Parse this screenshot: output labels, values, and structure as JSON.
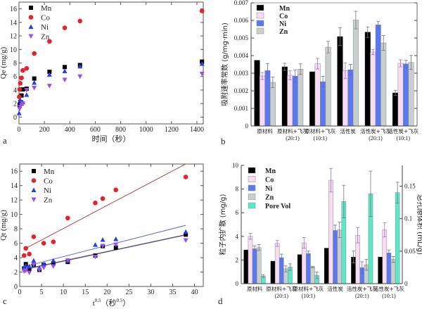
{
  "chart_data": [
    {
      "panel": "a",
      "type": "scatter",
      "xlabel": "时间（秒）",
      "ylabel": "Qe (mg/g)",
      "xlim": [
        0,
        1450
      ],
      "ylim": [
        -1,
        17
      ],
      "xticks": [
        0,
        200,
        400,
        600,
        800,
        1000,
        1200,
        1400
      ],
      "yticks": [
        0,
        2,
        4,
        6,
        8,
        10,
        12,
        14,
        16
      ],
      "legend": "top-left",
      "series": [
        {
          "name": "Mn",
          "color": "#000000",
          "marker": "square",
          "x": [
            5,
            10,
            20,
            30,
            60,
            120,
            240,
            360,
            480,
            1440
          ],
          "y": [
            1.8,
            2.2,
            3.2,
            4.1,
            4.2,
            5.7,
            6.7,
            7.4,
            7.7,
            8.2
          ]
        },
        {
          "name": "Co",
          "color": "#e8222c",
          "marker": "circle",
          "x": [
            2,
            5,
            10,
            20,
            30,
            60,
            120,
            240,
            360,
            480,
            1440
          ],
          "y": [
            3.0,
            4.1,
            5.0,
            5.8,
            6.9,
            7.2,
            9.4,
            11.2,
            13.2,
            14.2,
            15.7
          ]
        },
        {
          "name": "Ni",
          "color": "#2a3ee8",
          "marker": "triangle-up",
          "x": [
            1,
            10,
            20,
            30,
            60,
            120,
            240,
            360,
            480,
            1440
          ],
          "y": [
            0.6,
            2.5,
            2.0,
            2.2,
            3.3,
            5.1,
            6.3,
            6.8,
            7.5,
            7.9
          ]
        },
        {
          "name": "Zn",
          "color": "#9a50e8",
          "marker": "triangle-down",
          "x": [
            5,
            10,
            20,
            30,
            60,
            120,
            240,
            360,
            480,
            1440
          ],
          "y": [
            1.2,
            1.5,
            1.8,
            2.0,
            4.0,
            4.3,
            4.6,
            5.5,
            6.0,
            6.4
          ]
        }
      ]
    },
    {
      "panel": "b",
      "type": "bar",
      "ylabel": "吸附速率常数 (g/mg·min)",
      "ylim": [
        0,
        0.007
      ],
      "yticks": [
        "0",
        "0.001",
        "0.002",
        "0.003",
        "0.004",
        "0.005",
        "0.006",
        "0.007"
      ],
      "legend": "top-left",
      "categories": [
        [
          "原材料",
          ""
        ],
        [
          "原材料+飞灰",
          "(20:1)"
        ],
        [
          "原材料+飞灰",
          "(10:1)"
        ],
        [
          "活性炭",
          ""
        ],
        [
          "活性炭+飞灰",
          "(20:1)"
        ],
        [
          "活性炭+飞灰",
          "(10:1)"
        ]
      ],
      "series": [
        {
          "name": "Mn",
          "color": "#000000",
          "label_color": "#000000",
          "values": [
            0.00373,
            0.00336,
            0.00308,
            0.00508,
            0.00533,
            0.00188
          ],
          "errors": [
            0,
            0.0002,
            0,
            0.0005,
            0.0003,
            0.00015
          ]
        },
        {
          "name": "Co",
          "color": "#f7dcf2",
          "label_color": "#e0306a",
          "values": [
            0.00284,
            0.00288,
            0.00354,
            0.00314,
            0.0042,
            0.00356
          ],
          "errors": [
            0.0002,
            0.00025,
            0.0003,
            0.00045,
            0.00015,
            0.0002
          ]
        },
        {
          "name": "Ni",
          "color": "#5a78f0",
          "label_color": "#2a3ee8",
          "values": [
            0.00315,
            0.00284,
            0.00252,
            0.0032,
            0.00575,
            0.00353
          ],
          "errors": [
            0.0004,
            0.00035,
            0.0003,
            0.0003,
            0.0002,
            0.0002
          ]
        },
        {
          "name": "Zn",
          "color": "#c9cfcf",
          "label_color": "#b0b8c0",
          "values": [
            0.00248,
            0.00323,
            0.00448,
            0.00602,
            0.00472,
            0.00361
          ],
          "errors": [
            0.0003,
            0.0003,
            0.00033,
            0.0005,
            0.00042,
            0.0004
          ]
        }
      ]
    },
    {
      "panel": "c",
      "type": "scatter",
      "xlabel": "t",
      "xlabel_sup": "0.5",
      "xlabel_unit": "（秒",
      "xlabel_unit_sup": "0.5",
      "xlabel_end": "）",
      "ylabel": "Qt (mg/g)",
      "xlim": [
        0,
        42
      ],
      "ylim": [
        0,
        17
      ],
      "xticks": [
        0,
        5,
        10,
        15,
        20,
        25,
        30,
        35,
        40
      ],
      "yticks": [
        0,
        2,
        4,
        6,
        8,
        10,
        12,
        14,
        16
      ],
      "legend": "top-left",
      "series": [
        {
          "name": "Mn",
          "color": "#000000",
          "marker": "square",
          "x": [
            1,
            1.4,
            2.2,
            3.2,
            4.5,
            5.5,
            7.7,
            11,
            17.3,
            19,
            22,
            38
          ],
          "y": [
            2.5,
            3.1,
            2.4,
            3.0,
            2.3,
            3.0,
            3.2,
            3.4,
            4.3,
            5.6,
            5.4,
            7.2
          ],
          "fit": {
            "slope": 0.13,
            "intercept": 2.25,
            "color": "#3a2a5a"
          }
        },
        {
          "name": "Co",
          "color": "#e8222c",
          "marker": "circle",
          "x": [
            1,
            1.4,
            2.2,
            3.2,
            5.5,
            7.7,
            11,
            17.3,
            19,
            22,
            38
          ],
          "y": [
            4.3,
            5.3,
            4.5,
            6.9,
            6.0,
            6.2,
            9.5,
            11.6,
            12.2,
            13.4,
            15.2
          ],
          "fit": {
            "slope": 0.32,
            "intercept": 4.85,
            "color": "#a8484e"
          }
        },
        {
          "name": "Ni",
          "color": "#2a3ee8",
          "marker": "triangle-up",
          "x": [
            1,
            1.4,
            2.2,
            3.2,
            4.5,
            5.5,
            7.7,
            11,
            17.3,
            19,
            22,
            38
          ],
          "y": [
            2.6,
            2.9,
            2.8,
            3.6,
            2.6,
            3.1,
            3.6,
            3.6,
            5.8,
            6.5,
            6.6,
            7.6
          ],
          "fit": {
            "slope": 0.155,
            "intercept": 2.6,
            "color": "#5a6ae0"
          }
        },
        {
          "name": "Zn",
          "color": "#9a50e8",
          "marker": "triangle-down",
          "x": [
            1,
            1.4,
            2.2,
            3.2,
            4.5,
            5.5,
            7.7,
            11,
            17.3,
            19,
            22,
            38
          ],
          "y": [
            2.1,
            2.2,
            1.9,
            3.0,
            2.3,
            2.6,
            2.8,
            3.6,
            4.1,
            5.6,
            5.8,
            6.4
          ],
          "fit": {
            "slope": 0.13,
            "intercept": 2.2,
            "color": "#6a5aa0"
          }
        }
      ]
    },
    {
      "panel": "d",
      "type": "bar",
      "ylabel": "粒子内扩散 (mg/g)",
      "ylabel_right": "总孔隙体积 (mL/g)",
      "ylim": [
        0,
        10
      ],
      "ylim_right": [
        0,
        0.182
      ],
      "yticks": [
        "0",
        "2",
        "4",
        "6",
        "8",
        "10"
      ],
      "yticks_right": [
        "0",
        "0.05",
        "0.1",
        "0.15"
      ],
      "legend": "top-left",
      "categories": [
        [
          "原材料",
          ""
        ],
        [
          "原材料+飞灰",
          "(20:1)"
        ],
        [
          "原材料+飞灰",
          "(10:1)"
        ],
        [
          "活性炭",
          ""
        ],
        [
          "活性炭+飞灰",
          "(20:1)"
        ],
        [
          "活性炭+飞灰",
          "(10:1)"
        ]
      ],
      "series": [
        {
          "name": "Mn",
          "color": "#000000",
          "label_color": "#000000",
          "axis": "left",
          "values": [
            2.85,
            1.9,
            2.45,
            3.0,
            2.25,
            2.25
          ],
          "errors": [
            0,
            0,
            0,
            0,
            0.5,
            0
          ]
        },
        {
          "name": "Co",
          "color": "#f7dcf2",
          "label_color": "#e0306a",
          "axis": "left",
          "values": [
            4.0,
            3.4,
            3.45,
            8.75,
            4.1,
            4.55
          ],
          "errors": [
            0.25,
            0.25,
            0.45,
            1.0,
            0.65,
            0.6
          ]
        },
        {
          "name": "Ni",
          "color": "#5a78f0",
          "label_color": "#2a3ee8",
          "axis": "left",
          "values": [
            2.95,
            2.2,
            2.55,
            4.5,
            1.35,
            2.6
          ],
          "errors": [
            0.25,
            0.3,
            0.2,
            0.45,
            0.5,
            0.25
          ]
        },
        {
          "name": "Zn",
          "color": "#c9cfcf",
          "label_color": "#b0b8c0",
          "axis": "left",
          "values": [
            3.05,
            1.25,
            1.4,
            4.55,
            1.6,
            2.05
          ],
          "errors": [
            0.25,
            0.25,
            0.05,
            0.65,
            0.45,
            0.25
          ]
        },
        {
          "name": "Pore Vol",
          "color": "#5ae8c8",
          "label_color": "#40e0f0",
          "axis": "right",
          "values": [
            0.0118,
            0.0255,
            0.0127,
            0.1265,
            0.1383,
            0.1401
          ],
          "errors": [
            0.002,
            0.005,
            0.005,
            0.025,
            0.035,
            0.016
          ]
        }
      ]
    }
  ]
}
